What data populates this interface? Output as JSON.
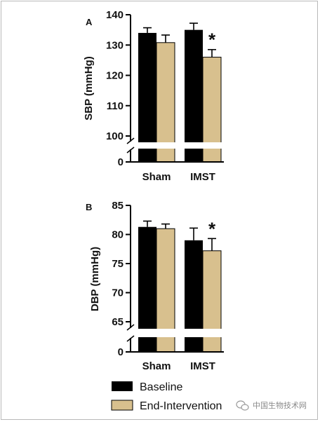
{
  "colors": {
    "baseline": "#000000",
    "end_intervention": "#d8c08e",
    "axis": "#111111"
  },
  "watermark": {
    "text": "中国生物技术网",
    "icon": "wechat-logo-icon"
  },
  "legend": {
    "items": [
      {
        "label": "Baseline"
      },
      {
        "label": "End-Intervention"
      }
    ]
  },
  "chart_data": [
    {
      "type": "bar",
      "panel": "A",
      "ylabel": "SBP (mmHg)",
      "categories": [
        "Sham",
        "IMST"
      ],
      "series": [
        {
          "name": "Baseline",
          "values": [
            134,
            135
          ],
          "errors": [
            1.7,
            2.2
          ]
        },
        {
          "name": "End-Intervention",
          "values": [
            130.8,
            126
          ],
          "errors": [
            2.5,
            2.5
          ]
        }
      ],
      "significance": [
        {
          "category": "IMST",
          "series": "End-Intervention",
          "mark": "*"
        }
      ],
      "ylim": [
        100,
        140
      ],
      "yticks": [
        100,
        110,
        120,
        130,
        140
      ],
      "broken_axis": true,
      "broken_axis_lower_tick": 0
    },
    {
      "type": "bar",
      "panel": "B",
      "ylabel": "DBP (mmHg)",
      "categories": [
        "Sham",
        "IMST"
      ],
      "series": [
        {
          "name": "Baseline",
          "values": [
            81.3,
            79
          ],
          "errors": [
            1,
            2.1
          ]
        },
        {
          "name": "End-Intervention",
          "values": [
            81,
            77.2
          ],
          "errors": [
            0.8,
            2.1
          ]
        }
      ],
      "significance": [
        {
          "category": "IMST",
          "series": "End-Intervention",
          "mark": "*"
        }
      ],
      "ylim": [
        65,
        85
      ],
      "yticks": [
        65,
        70,
        75,
        80,
        85
      ],
      "broken_axis": true,
      "broken_axis_lower_tick": 0
    }
  ]
}
